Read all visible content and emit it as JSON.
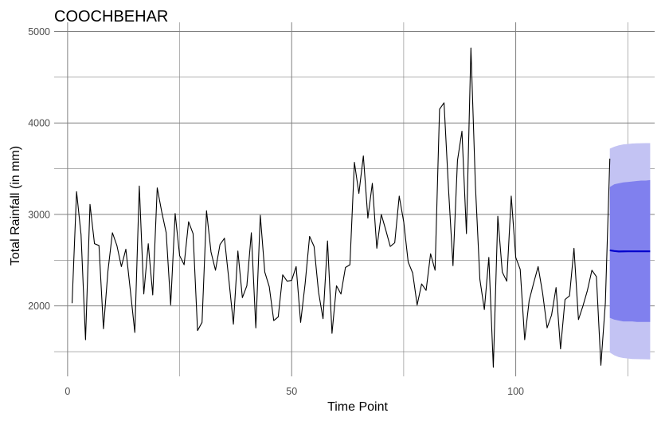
{
  "chart_data": {
    "type": "line",
    "title": "COOCHBEHAR",
    "xlabel": "Time Point",
    "ylabel": "Total Rainfall (in mm)",
    "xlim": [
      -3,
      131
    ],
    "ylim": [
      1230,
      5100
    ],
    "x_ticks": [
      0,
      50,
      100
    ],
    "y_ticks": [
      2000,
      3000,
      4000,
      5000
    ],
    "grid": true,
    "colors": {
      "series": "#000000",
      "forecast_mean": "#0000cc",
      "band_80": "#8080ee",
      "band_95": "#c3c3f3",
      "grid": "#808080"
    },
    "series": [
      {
        "values": [
          2030,
          3250,
          2780,
          1630,
          3110,
          2680,
          2660,
          1750,
          2380,
          2800,
          2660,
          2430,
          2620,
          2170,
          1710,
          3310,
          2130,
          2680,
          2120,
          3290,
          3030,
          2800,
          2010,
          3010,
          2550,
          2450,
          2920,
          2790,
          1730,
          1820,
          3040,
          2590,
          2390,
          2670,
          2740,
          2280,
          1800,
          2600,
          2090,
          2220,
          2800,
          1760,
          2990,
          2370,
          2210,
          1840,
          1880,
          2340,
          2270,
          2280,
          2430,
          1820,
          2240,
          2760,
          2650,
          2150,
          1860,
          2710,
          1700,
          2220,
          2130,
          2420,
          2450,
          3570,
          3230,
          3640,
          2960,
          3340,
          2630,
          3000,
          2830,
          2650,
          2690,
          3200,
          2920,
          2480,
          2360,
          2010,
          2240,
          2170,
          2570,
          2390,
          4150,
          4220,
          3280,
          2440,
          3590,
          3910,
          2790,
          4820,
          3320,
          2290,
          1960,
          2530,
          1330,
          2980,
          2370,
          2270,
          3200,
          2530,
          2400,
          1630,
          2060,
          2250,
          2430,
          2140,
          1760,
          1900,
          2200,
          1530,
          2070,
          2110,
          2630,
          1850,
          2000,
          2170,
          2390,
          2320,
          1350,
          2030,
          3610
        ]
      }
    ],
    "forecast": {
      "x": [
        121,
        122,
        123,
        124,
        125,
        126,
        127,
        128,
        129,
        130
      ],
      "mean": [
        2608,
        2600,
        2595,
        2596,
        2597,
        2597,
        2597,
        2597,
        2597,
        2597
      ],
      "lo80": [
        1870,
        1850,
        1840,
        1830,
        1830,
        1830,
        1825,
        1825,
        1825,
        1825
      ],
      "hi80": [
        3300,
        3330,
        3340,
        3350,
        3355,
        3360,
        3365,
        3370,
        3370,
        3375
      ],
      "lo95": [
        1490,
        1460,
        1440,
        1430,
        1425,
        1420,
        1418,
        1417,
        1416,
        1415
      ],
      "hi95": [
        3720,
        3740,
        3755,
        3765,
        3770,
        3775,
        3777,
        3778,
        3779,
        3780
      ]
    }
  }
}
